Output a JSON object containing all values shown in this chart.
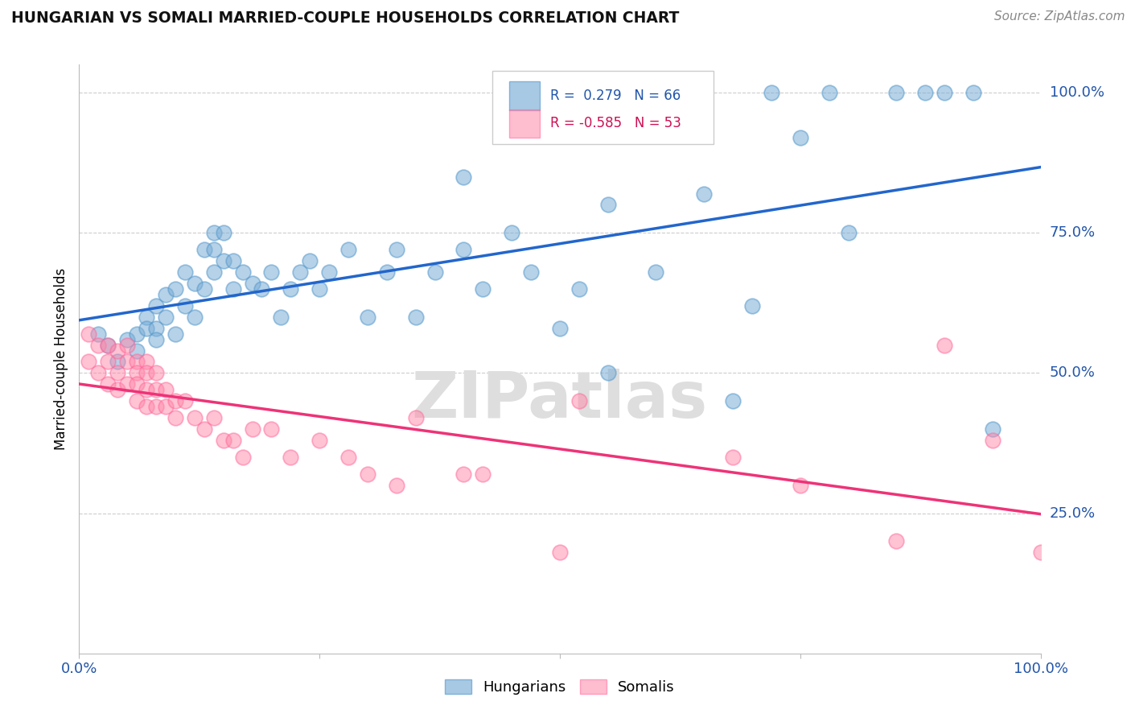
{
  "title": "HUNGARIAN VS SOMALI MARRIED-COUPLE HOUSEHOLDS CORRELATION CHART",
  "source": "Source: ZipAtlas.com",
  "ylabel": "Married-couple Households",
  "ytick_labels": [
    "100.0%",
    "75.0%",
    "50.0%",
    "25.0%"
  ],
  "ytick_values": [
    1.0,
    0.75,
    0.5,
    0.25
  ],
  "xlim": [
    0.0,
    1.0
  ],
  "ylim": [
    0.0,
    1.05
  ],
  "legend_blue_r": "0.279",
  "legend_blue_n": "66",
  "legend_pink_r": "-0.585",
  "legend_pink_n": "53",
  "blue_scatter_color": "#7AADD6",
  "blue_scatter_edge": "#5599CC",
  "pink_scatter_color": "#FF88AA",
  "pink_scatter_edge": "#FF6699",
  "blue_line_color": "#2266CC",
  "pink_line_color": "#EE3377",
  "axis_label_color": "#2255AA",
  "hungarian_x": [
    0.02,
    0.03,
    0.04,
    0.05,
    0.06,
    0.06,
    0.07,
    0.07,
    0.08,
    0.08,
    0.08,
    0.09,
    0.09,
    0.1,
    0.1,
    0.11,
    0.11,
    0.12,
    0.12,
    0.13,
    0.13,
    0.14,
    0.14,
    0.14,
    0.15,
    0.15,
    0.16,
    0.16,
    0.17,
    0.18,
    0.19,
    0.2,
    0.21,
    0.22,
    0.23,
    0.24,
    0.25,
    0.26,
    0.28,
    0.3,
    0.32,
    0.33,
    0.35,
    0.37,
    0.4,
    0.42,
    0.45,
    0.47,
    0.5,
    0.52,
    0.55,
    0.6,
    0.65,
    0.68,
    0.7,
    0.72,
    0.75,
    0.78,
    0.8,
    0.85,
    0.88,
    0.9,
    0.93,
    0.95,
    0.55,
    0.4
  ],
  "hungarian_y": [
    0.57,
    0.55,
    0.52,
    0.56,
    0.57,
    0.54,
    0.6,
    0.58,
    0.58,
    0.56,
    0.62,
    0.6,
    0.64,
    0.57,
    0.65,
    0.62,
    0.68,
    0.6,
    0.66,
    0.65,
    0.72,
    0.68,
    0.72,
    0.75,
    0.7,
    0.75,
    0.65,
    0.7,
    0.68,
    0.66,
    0.65,
    0.68,
    0.6,
    0.65,
    0.68,
    0.7,
    0.65,
    0.68,
    0.72,
    0.6,
    0.68,
    0.72,
    0.6,
    0.68,
    0.72,
    0.65,
    0.75,
    0.68,
    0.58,
    0.65,
    0.5,
    0.68,
    0.82,
    0.45,
    0.62,
    1.0,
    0.92,
    1.0,
    0.75,
    1.0,
    1.0,
    1.0,
    1.0,
    0.4,
    0.8,
    0.85
  ],
  "somali_x": [
    0.01,
    0.01,
    0.02,
    0.02,
    0.03,
    0.03,
    0.03,
    0.04,
    0.04,
    0.04,
    0.05,
    0.05,
    0.05,
    0.06,
    0.06,
    0.06,
    0.06,
    0.07,
    0.07,
    0.07,
    0.07,
    0.08,
    0.08,
    0.08,
    0.09,
    0.09,
    0.1,
    0.1,
    0.11,
    0.12,
    0.13,
    0.14,
    0.15,
    0.16,
    0.17,
    0.18,
    0.2,
    0.22,
    0.25,
    0.28,
    0.3,
    0.33,
    0.35,
    0.4,
    0.42,
    0.5,
    0.52,
    0.68,
    0.75,
    0.85,
    0.9,
    0.95,
    1.0
  ],
  "somali_y": [
    0.57,
    0.52,
    0.55,
    0.5,
    0.55,
    0.52,
    0.48,
    0.54,
    0.5,
    0.47,
    0.55,
    0.52,
    0.48,
    0.52,
    0.5,
    0.48,
    0.45,
    0.52,
    0.5,
    0.47,
    0.44,
    0.5,
    0.47,
    0.44,
    0.47,
    0.44,
    0.45,
    0.42,
    0.45,
    0.42,
    0.4,
    0.42,
    0.38,
    0.38,
    0.35,
    0.4,
    0.4,
    0.35,
    0.38,
    0.35,
    0.32,
    0.3,
    0.42,
    0.32,
    0.32,
    0.18,
    0.45,
    0.35,
    0.3,
    0.2,
    0.55,
    0.38,
    0.18
  ]
}
